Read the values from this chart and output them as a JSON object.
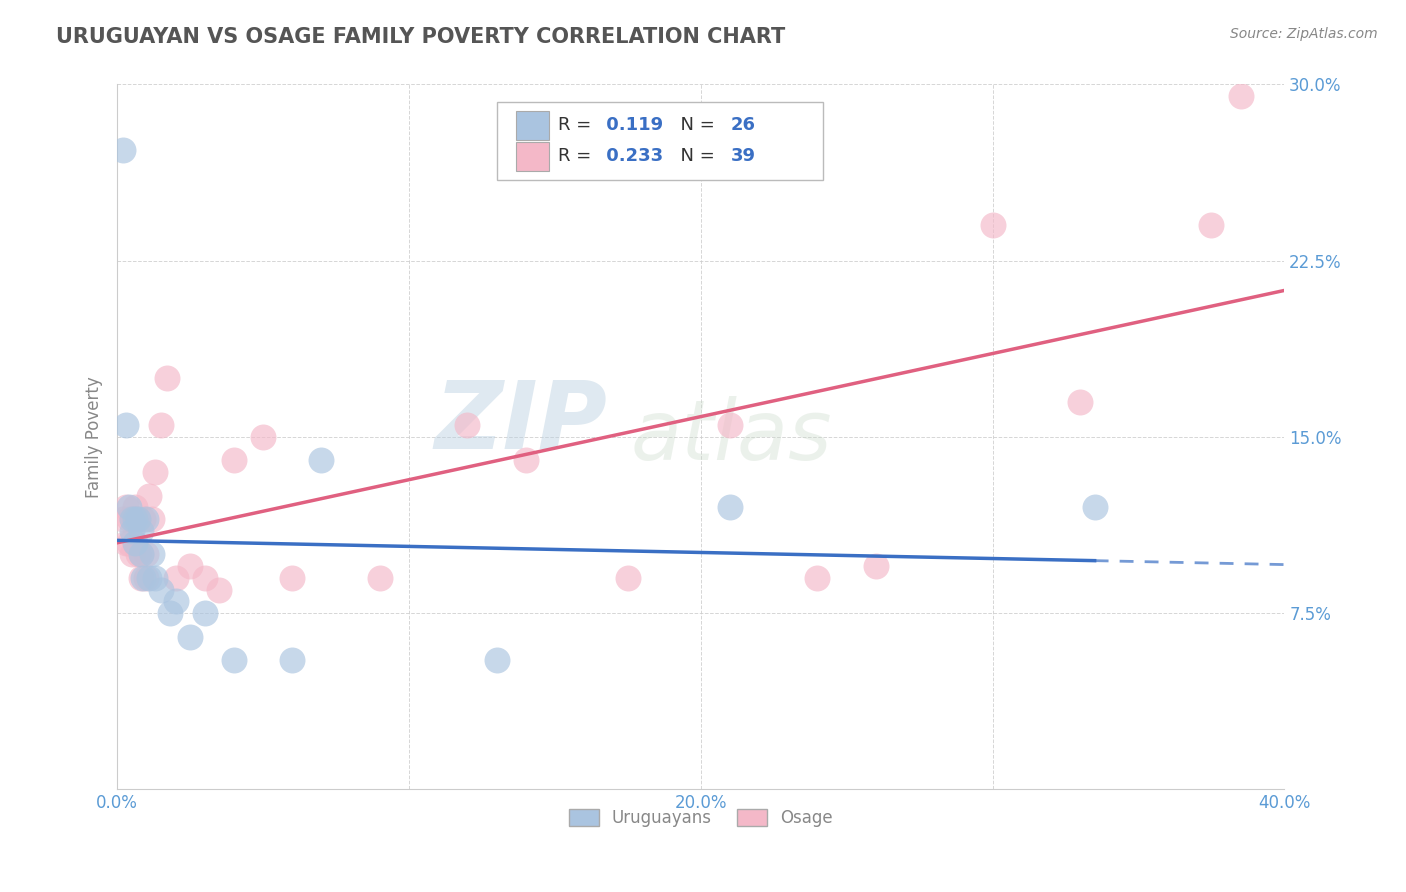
{
  "title": "URUGUAYAN VS OSAGE FAMILY POVERTY CORRELATION CHART",
  "source": "Source: ZipAtlas.com",
  "ylabel": "Family Poverty",
  "xlim": [
    0.0,
    0.4
  ],
  "ylim": [
    0.0,
    0.3
  ],
  "xticks": [
    0.0,
    0.1,
    0.2,
    0.3,
    0.4
  ],
  "xtick_labels": [
    "0.0%",
    "",
    "20.0%",
    "",
    "40.0%"
  ],
  "yticks": [
    0.0,
    0.075,
    0.15,
    0.225,
    0.3
  ],
  "ytick_labels": [
    "",
    "7.5%",
    "15.0%",
    "22.5%",
    "30.0%"
  ],
  "grid_color": "#cccccc",
  "background_color": "#ffffff",
  "title_color": "#555555",
  "axis_label_color": "#888888",
  "tick_color": "#5b9bd5",
  "uruguayan_color": "#aac4e0",
  "osage_color": "#f4b8c8",
  "uruguayan_line_color": "#3a6fc4",
  "osage_line_color": "#e06080",
  "R_uruguayan": 0.119,
  "N_uruguayan": 26,
  "R_osage": 0.233,
  "N_osage": 39,
  "watermark_text": "ZIPatlas",
  "watermark_color": "#c8d8ea",
  "legend_labels": [
    "Uruguayans",
    "Osage"
  ],
  "uruguayan_x": [
    0.002,
    0.003,
    0.004,
    0.005,
    0.005,
    0.006,
    0.006,
    0.007,
    0.008,
    0.008,
    0.009,
    0.01,
    0.011,
    0.012,
    0.013,
    0.015,
    0.018,
    0.02,
    0.025,
    0.03,
    0.04,
    0.06,
    0.07,
    0.13,
    0.21,
    0.335
  ],
  "uruguayan_y": [
    0.272,
    0.155,
    0.12,
    0.115,
    0.11,
    0.115,
    0.105,
    0.115,
    0.11,
    0.1,
    0.09,
    0.115,
    0.09,
    0.1,
    0.09,
    0.085,
    0.075,
    0.08,
    0.065,
    0.075,
    0.055,
    0.055,
    0.14,
    0.055,
    0.12,
    0.12
  ],
  "osage_x": [
    0.002,
    0.003,
    0.003,
    0.004,
    0.004,
    0.005,
    0.005,
    0.006,
    0.006,
    0.007,
    0.007,
    0.008,
    0.008,
    0.009,
    0.01,
    0.01,
    0.011,
    0.012,
    0.013,
    0.015,
    0.017,
    0.02,
    0.025,
    0.03,
    0.035,
    0.04,
    0.05,
    0.06,
    0.09,
    0.12,
    0.14,
    0.175,
    0.21,
    0.24,
    0.26,
    0.3,
    0.33,
    0.375,
    0.385
  ],
  "osage_y": [
    0.115,
    0.12,
    0.105,
    0.115,
    0.105,
    0.115,
    0.1,
    0.12,
    0.105,
    0.115,
    0.1,
    0.1,
    0.09,
    0.115,
    0.1,
    0.09,
    0.125,
    0.115,
    0.135,
    0.155,
    0.175,
    0.09,
    0.095,
    0.09,
    0.085,
    0.14,
    0.15,
    0.09,
    0.09,
    0.155,
    0.14,
    0.09,
    0.155,
    0.09,
    0.095,
    0.24,
    0.165,
    0.24,
    0.295
  ]
}
